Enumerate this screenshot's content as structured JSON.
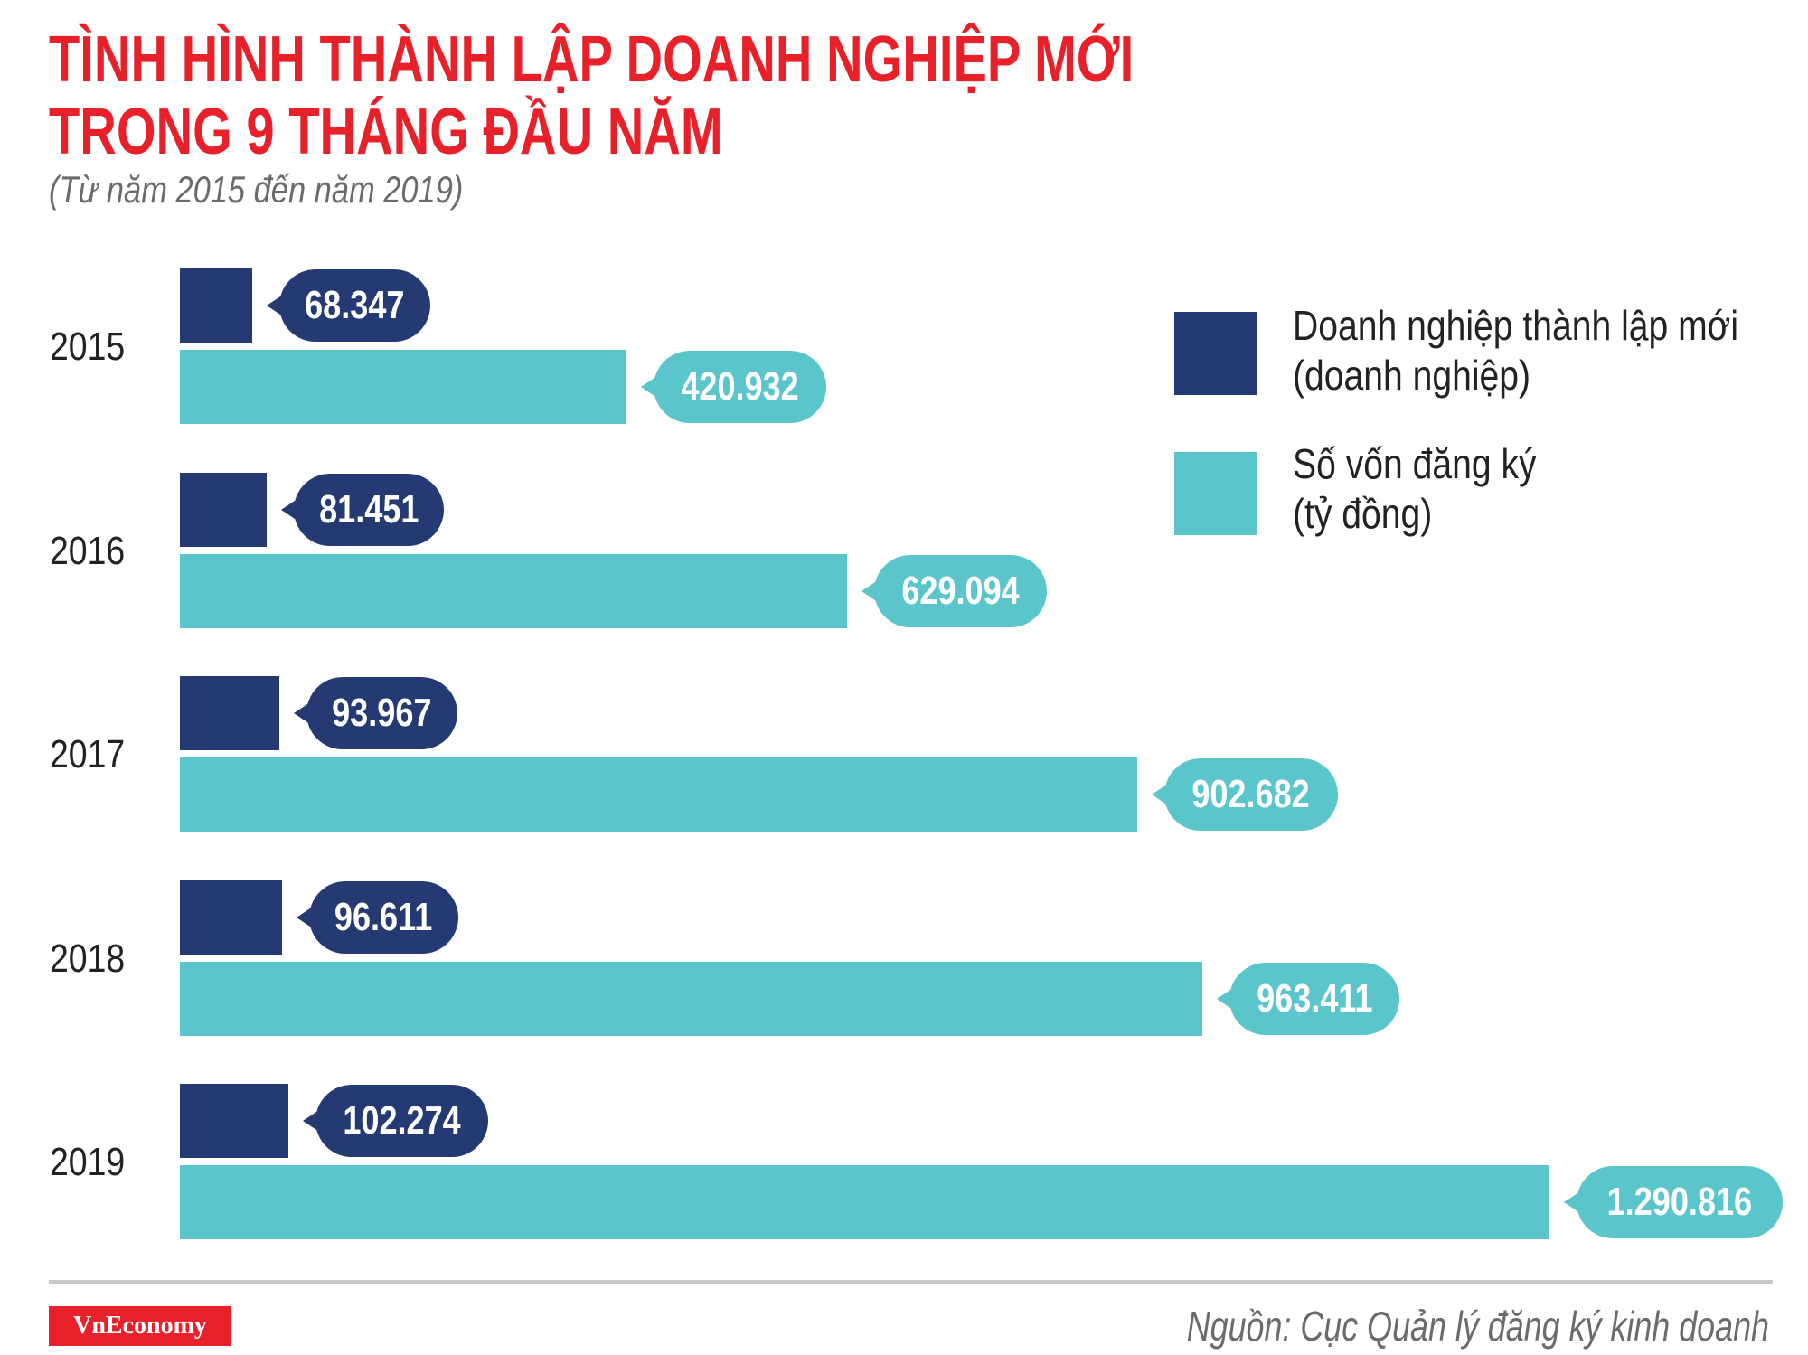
{
  "header": {
    "title_line1": "TÌNH HÌNH THÀNH LẬP DOANH NGHIỆP MỚI",
    "title_line2": "TRONG 9 THÁNG ĐẦU NĂM",
    "subtitle": "(Từ năm 2015 đến năm 2019)"
  },
  "chart_data": {
    "type": "bar",
    "orientation": "horizontal",
    "categories": [
      "2015",
      "2016",
      "2017",
      "2018",
      "2019"
    ],
    "series": [
      {
        "name": "Doanh nghiệp thành lập mới (doanh nghiệp)",
        "values": [
          68347,
          81451,
          93967,
          96611,
          102274
        ],
        "labels": [
          "68.347",
          "81.451",
          "93.967",
          "96.611",
          "102.274"
        ],
        "color": "#253a73"
      },
      {
        "name": "Số vốn đăng ký (tỷ đồng)",
        "values": [
          420932,
          629094,
          902682,
          963411,
          1290816
        ],
        "labels": [
          "420.932",
          "629.094",
          "902.682",
          "963.411",
          "1.290.816"
        ],
        "color": "#5ac6cc"
      }
    ],
    "legend": {
      "position": "top-right",
      "items": [
        {
          "line1": "Doanh nghiệp thành lập mới",
          "line2": "(doanh nghiệp)"
        },
        {
          "line1": "Số vốn đăng ký",
          "line2": "(tỷ đồng)"
        }
      ]
    },
    "grid": false
  },
  "footer": {
    "logo": "VnEconomy",
    "source": "Nguồn: Cục Quản lý đăng ký kinh doanh"
  }
}
